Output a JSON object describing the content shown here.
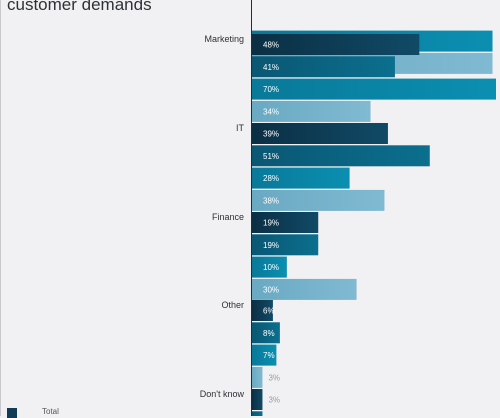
{
  "chart_data": {
    "type": "bar",
    "orientation": "horizontal",
    "title": "customer demands",
    "xlim": [
      0,
      70
    ],
    "grid": false,
    "value_suffix": "%",
    "colors": [
      "#0f3d57",
      "#0a6684",
      "#0a87a8",
      "#76b2cb"
    ],
    "groups": [
      {
        "label": "",
        "values": [
          69,
          69
        ]
      },
      {
        "label": "Marketing",
        "values": [
          48,
          41,
          70,
          34
        ]
      },
      {
        "label": "IT",
        "values": [
          39,
          51,
          28,
          38
        ]
      },
      {
        "label": "Finance",
        "values": [
          19,
          19,
          10,
          30
        ]
      },
      {
        "label": "Other",
        "values": [
          6,
          8,
          7,
          3
        ]
      },
      {
        "label": "Don't know",
        "values": [
          3,
          3
        ]
      }
    ],
    "legend": [
      {
        "label": "Total",
        "color": "#0f3d57"
      }
    ]
  }
}
